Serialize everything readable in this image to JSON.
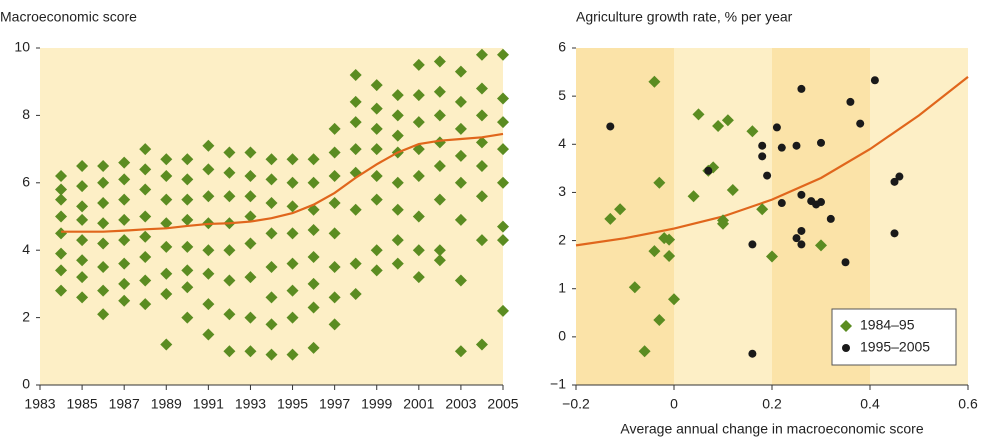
{
  "chart_data": [
    {
      "type": "scatter",
      "title": "Macroeconomic score",
      "xlim": [
        1983,
        2005
      ],
      "xticks": [
        1983,
        1985,
        1987,
        1989,
        1991,
        1993,
        1995,
        1997,
        1999,
        2001,
        2003,
        2005
      ],
      "ylim": [
        0,
        10
      ],
      "yticks": [
        0,
        2,
        4,
        6,
        8,
        10
      ],
      "color": "#5b8c21",
      "marker": "diamond",
      "groups": [
        {
          "x": 1984,
          "values": [
            6.2,
            5.8,
            5.5,
            5.0,
            4.5,
            3.9,
            3.4,
            2.8
          ]
        },
        {
          "x": 1985,
          "values": [
            6.5,
            5.9,
            5.3,
            4.9,
            4.3,
            3.7,
            3.2,
            2.6
          ]
        },
        {
          "x": 1986,
          "values": [
            6.5,
            6.0,
            5.4,
            4.8,
            4.2,
            3.5,
            2.8,
            2.1
          ]
        },
        {
          "x": 1987,
          "values": [
            6.6,
            6.1,
            5.5,
            4.9,
            4.3,
            3.6,
            3.0,
            2.5
          ]
        },
        {
          "x": 1988,
          "values": [
            7.0,
            6.4,
            5.8,
            5.0,
            4.4,
            3.8,
            3.1,
            2.4
          ]
        },
        {
          "x": 1989,
          "values": [
            6.7,
            6.2,
            5.5,
            4.8,
            4.1,
            3.3,
            2.7,
            1.2
          ]
        },
        {
          "x": 1990,
          "values": [
            6.7,
            6.1,
            5.5,
            4.9,
            4.1,
            3.4,
            2.9,
            2.0
          ]
        },
        {
          "x": 1991,
          "values": [
            7.1,
            6.4,
            5.6,
            4.8,
            4.0,
            3.3,
            2.4,
            1.5
          ]
        },
        {
          "x": 1992,
          "values": [
            6.9,
            6.3,
            5.6,
            4.8,
            4.0,
            3.1,
            2.1,
            1.0
          ]
        },
        {
          "x": 1993,
          "values": [
            6.9,
            6.2,
            5.6,
            5.0,
            4.2,
            3.2,
            2.0,
            1.0
          ]
        },
        {
          "x": 1994,
          "values": [
            6.7,
            6.1,
            5.4,
            4.5,
            3.5,
            2.6,
            1.8,
            0.9
          ]
        },
        {
          "x": 1995,
          "values": [
            6.7,
            6.0,
            5.3,
            4.5,
            3.6,
            2.8,
            2.0,
            0.9
          ]
        },
        {
          "x": 1996,
          "values": [
            6.7,
            6.0,
            5.2,
            4.6,
            3.8,
            3.0,
            2.3,
            1.1
          ]
        },
        {
          "x": 1997,
          "values": [
            7.6,
            6.9,
            6.2,
            5.4,
            4.5,
            3.5,
            2.6,
            1.8
          ]
        },
        {
          "x": 1998,
          "values": [
            9.2,
            8.4,
            7.8,
            7.0,
            6.3,
            5.2,
            3.6,
            2.7
          ]
        },
        {
          "x": 1999,
          "values": [
            8.9,
            8.2,
            7.6,
            7.0,
            6.2,
            5.5,
            4.0,
            3.4
          ]
        },
        {
          "x": 2000,
          "values": [
            8.6,
            8.0,
            7.4,
            6.9,
            6.0,
            5.2,
            4.3,
            3.6
          ]
        },
        {
          "x": 2001,
          "values": [
            9.5,
            8.6,
            7.8,
            7.0,
            6.2,
            5.0,
            4.0,
            3.2
          ]
        },
        {
          "x": 2002,
          "values": [
            9.6,
            8.7,
            8.0,
            7.2,
            6.5,
            5.5,
            4.0,
            3.7
          ]
        },
        {
          "x": 2003,
          "values": [
            9.3,
            8.4,
            7.6,
            6.8,
            6.0,
            4.9,
            3.1,
            1.0
          ]
        },
        {
          "x": 2004,
          "values": [
            9.8,
            8.8,
            8.0,
            7.2,
            6.5,
            5.6,
            4.3,
            1.2
          ]
        },
        {
          "x": 2005,
          "values": [
            9.8,
            8.5,
            7.8,
            7.0,
            6.0,
            4.7,
            4.3,
            2.2
          ]
        }
      ],
      "trend": {
        "color": "#e0661c",
        "x": [
          1984,
          1985,
          1986,
          1987,
          1988,
          1989,
          1990,
          1991,
          1992,
          1993,
          1994,
          1995,
          1996,
          1997,
          1998,
          1999,
          2000,
          2001,
          2002,
          2003,
          2004,
          2005
        ],
        "values": [
          4.55,
          4.55,
          4.55,
          4.58,
          4.62,
          4.65,
          4.72,
          4.78,
          4.8,
          4.85,
          4.95,
          5.1,
          5.35,
          5.7,
          6.15,
          6.55,
          6.9,
          7.15,
          7.25,
          7.3,
          7.35,
          7.45
        ]
      }
    },
    {
      "type": "scatter",
      "title": "Agriculture growth rate, % per year",
      "x_label": "Average annual change in macroeconomic score",
      "xlim": [
        -0.2,
        0.6
      ],
      "xticks": [
        {
          "value": -0.2,
          "label": "−0.2"
        },
        0,
        0.2,
        0.4,
        0.6
      ],
      "ylim": [
        -1,
        6
      ],
      "yticks": [
        {
          "value": -1,
          "label": "−1"
        },
        0,
        1,
        2,
        3,
        4,
        5,
        6
      ],
      "legend": "bottom-right",
      "series": [
        {
          "name": "1984–95",
          "color": "#5b8c21",
          "marker": "diamond",
          "x": [
            -0.13,
            -0.11,
            -0.04,
            -0.04,
            -0.03,
            -0.02,
            -0.01,
            -0.01,
            0,
            -0.03,
            -0.08,
            -0.06,
            0.04,
            0.05,
            0.07,
            0.08,
            0.09,
            0.1,
            0.1,
            0.11,
            0.12,
            0.16,
            0.18,
            0.2,
            0.3
          ],
          "values": [
            2.45,
            2.65,
            5.3,
            1.78,
            3.2,
            2.05,
            2.02,
            1.68,
            0.78,
            0.35,
            1.03,
            -0.3,
            2.92,
            4.62,
            3.45,
            3.52,
            4.38,
            2.35,
            2.42,
            4.5,
            3.05,
            4.27,
            2.65,
            1.67,
            1.9
          ]
        },
        {
          "name": "1995–2005",
          "color": "#1a1a1a",
          "marker": "circle",
          "x": [
            -0.13,
            0.07,
            0.16,
            0.16,
            0.18,
            0.18,
            0.19,
            0.21,
            0.22,
            0.22,
            0.25,
            0.25,
            0.26,
            0.26,
            0.26,
            0.26,
            0.28,
            0.29,
            0.3,
            0.3,
            0.32,
            0.35,
            0.36,
            0.38,
            0.41,
            0.45,
            0.45,
            0.46
          ],
          "values": [
            4.37,
            3.45,
            1.92,
            -0.35,
            3.75,
            3.97,
            3.35,
            4.35,
            3.93,
            2.78,
            3.97,
            2.05,
            1.92,
            2.2,
            2.95,
            5.15,
            2.82,
            2.75,
            4.03,
            2.8,
            2.45,
            1.55,
            4.88,
            4.43,
            5.33,
            3.22,
            2.15,
            3.33
          ]
        }
      ],
      "trend": {
        "color": "#e0661c",
        "x": [
          -0.2,
          -0.1,
          0,
          0.1,
          0.2,
          0.3,
          0.4,
          0.5,
          0.6
        ],
        "values": [
          1.9,
          2.05,
          2.25,
          2.5,
          2.85,
          3.3,
          3.9,
          4.6,
          5.4
        ]
      }
    }
  ]
}
